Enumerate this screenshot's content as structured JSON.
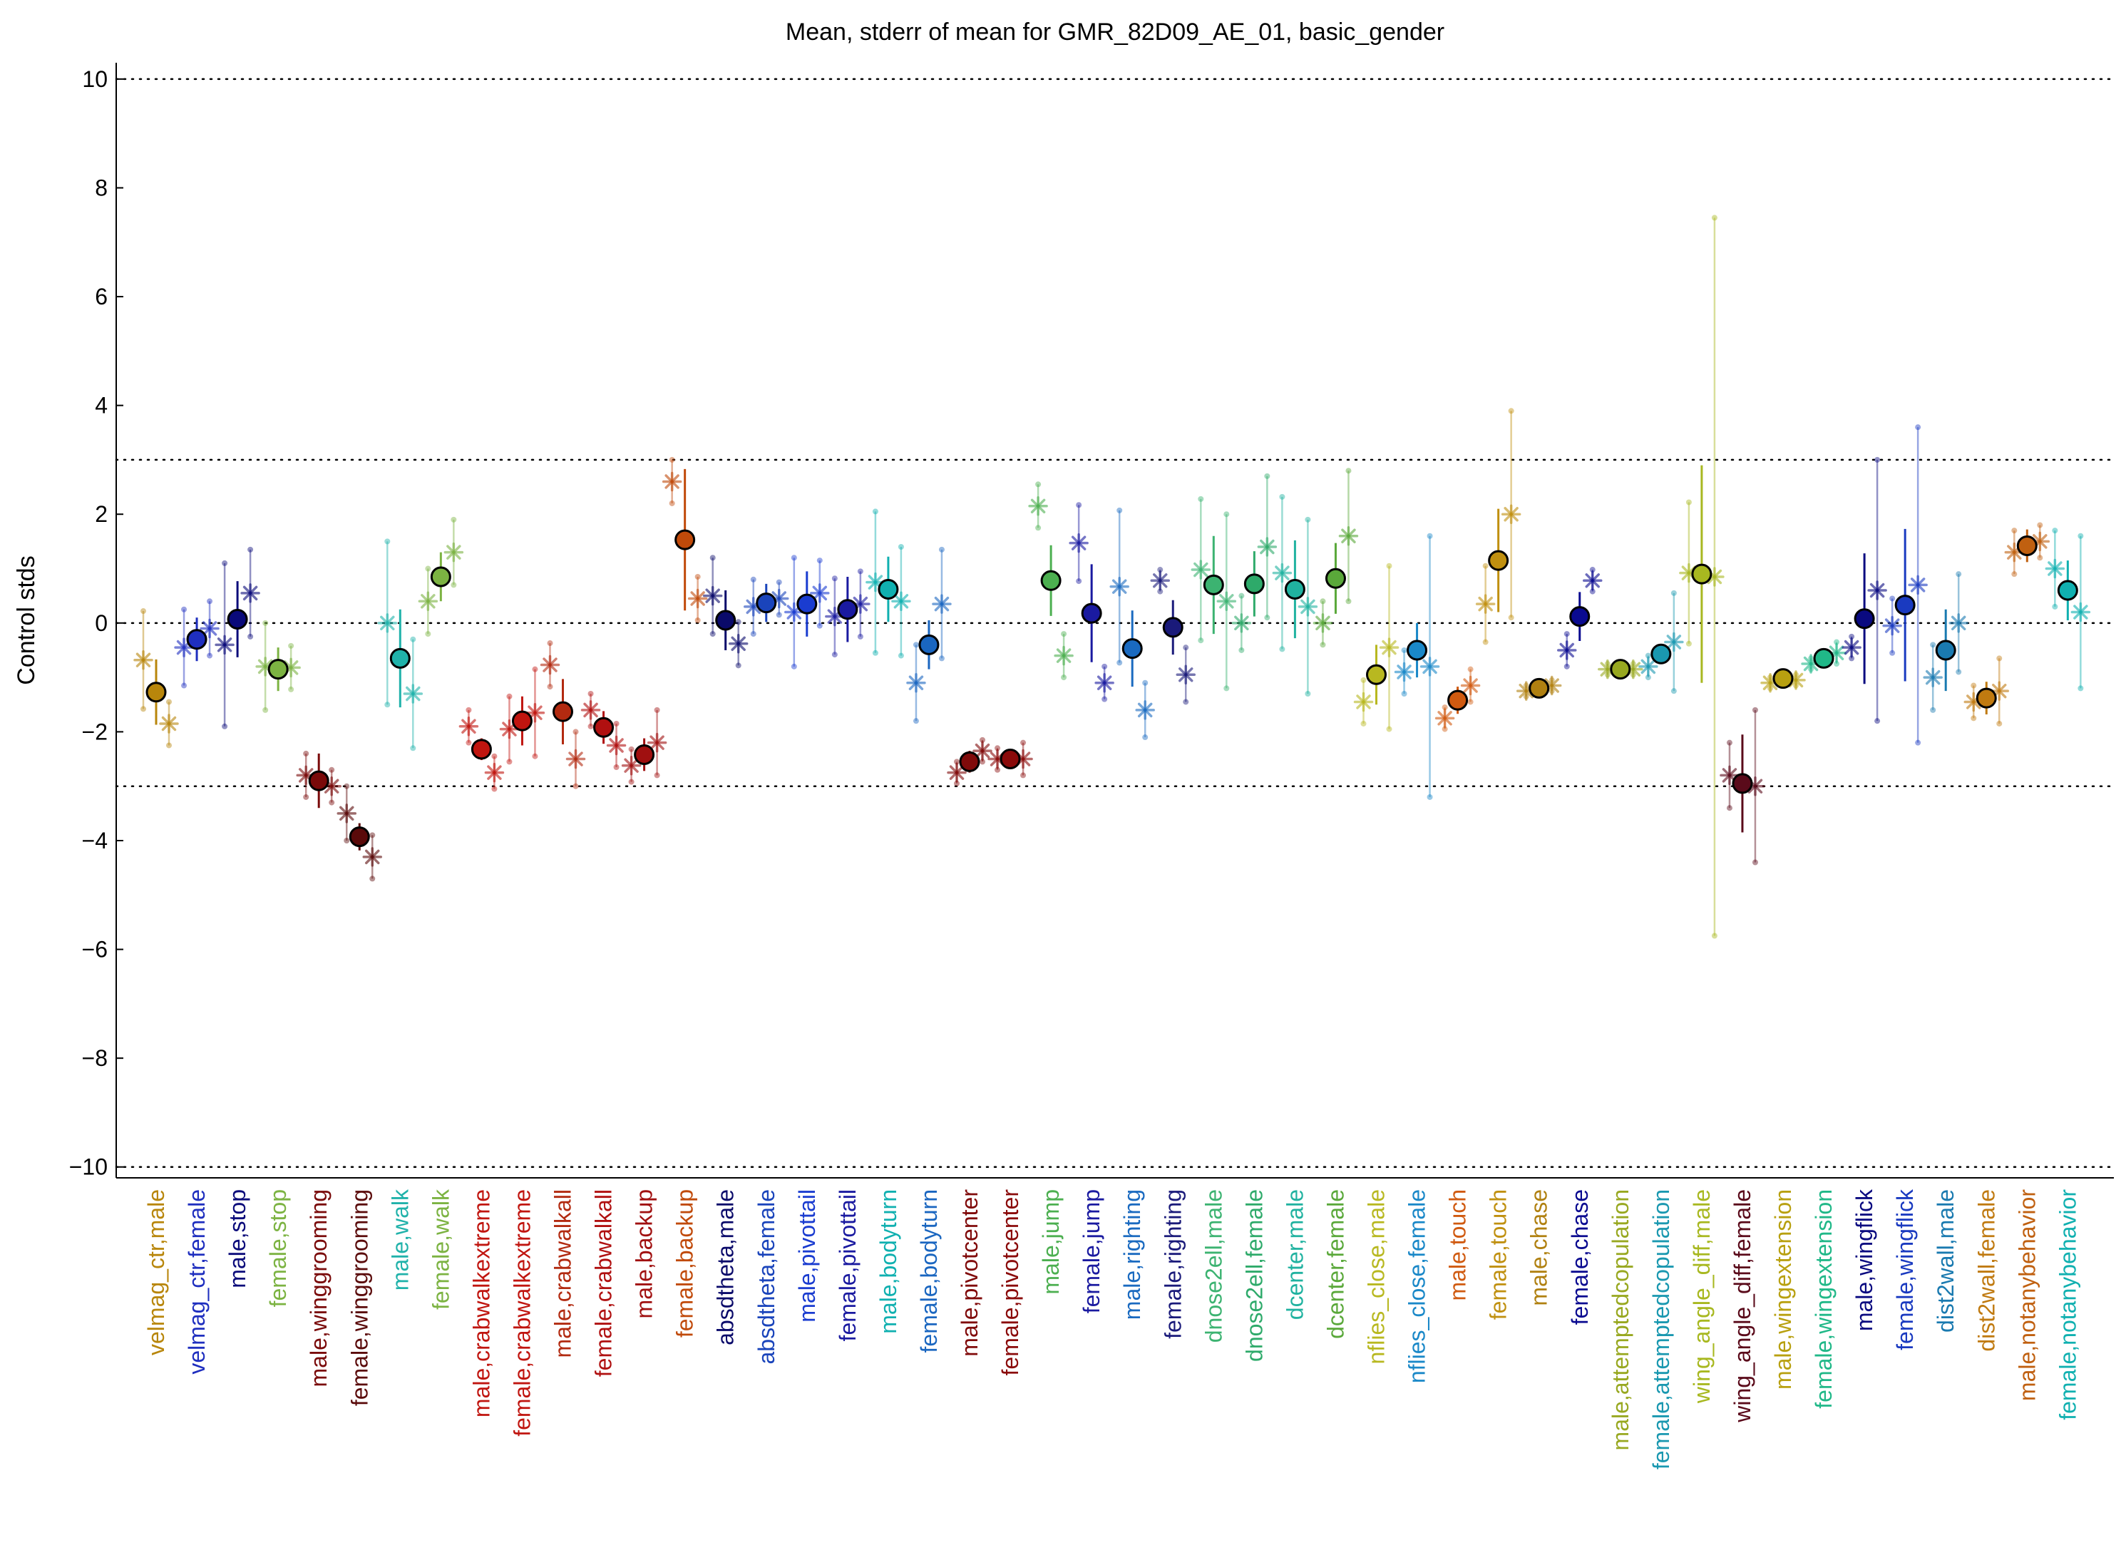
{
  "chart_data": {
    "type": "scatter",
    "title": "Mean, stderr of mean for GMR_82D09_AE_01, basic_gender",
    "xlabel": "",
    "ylabel": "Control stds",
    "ylim": [
      -10.2,
      10.3
    ],
    "yticks": [
      10,
      8,
      6,
      4,
      2,
      0,
      -2,
      -4,
      -6,
      -8,
      -10
    ],
    "ytick_labels": [
      "10",
      "8",
      "6",
      "4",
      "2",
      "0",
      "−2",
      "−4",
      "−6",
      "−8",
      "−10"
    ],
    "reference_lines": [
      10,
      3,
      0,
      -3,
      -10
    ],
    "grid": false,
    "legend": "none",
    "categories": [
      "velmag_ctr,male",
      "velmag_ctr,female",
      "male,stop",
      "female,stop",
      "male,winggrooming",
      "female,winggrooming",
      "male,walk",
      "female,walk",
      "male,crabwalkextreme",
      "female,crabwalkextreme",
      "male,crabwalkall",
      "female,crabwalkall",
      "male,backup",
      "female,backup",
      "absdtheta,male",
      "absdtheta,female",
      "male,pivottail",
      "female,pivottail",
      "male,bodyturn",
      "female,bodyturn",
      "male,pivotcenter",
      "female,pivotcenter",
      "male,jump",
      "female,jump",
      "male,righting",
      "female,righting",
      "dnose2ell,male",
      "dnose2ell,female",
      "dcenter,male",
      "dcenter,female",
      "nflies_close,male",
      "nflies_close,female",
      "male,touch",
      "female,touch",
      "male,chase",
      "female,chase",
      "male,attemptedcopulation",
      "female,attemptedcopulation",
      "wing_angle_diff,male",
      "wing_angle_diff,female",
      "male,wingextension",
      "female,wingextension",
      "male,wingflick",
      "female,wingflick",
      "dist2wall,male",
      "dist2wall,female",
      "male,notanybehavior",
      "female,notanybehavior"
    ],
    "colors": [
      "#b8860b",
      "#1f2fbf",
      "#0a0a7a",
      "#7cb342",
      "#7a0a0a",
      "#5a0a0a",
      "#20b2aa",
      "#7cb342",
      "#c0150f",
      "#c0150f",
      "#b22a10",
      "#b01010",
      "#a01010",
      "#c04a0a",
      "#0a0a6a",
      "#1a44bb",
      "#1a3cd0",
      "#1a1aa0",
      "#10b0b0",
      "#1a66c0",
      "#800a0a",
      "#8a0a0a",
      "#4caf50",
      "#1a1aa0",
      "#1a6ac0",
      "#1a1a7a",
      "#3cb371",
      "#2eaa6a",
      "#20b2a0",
      "#5aa83a",
      "#b8b820",
      "#1a88c8",
      "#d05a10",
      "#c09010",
      "#b08010",
      "#0a0a90",
      "#98a820",
      "#1a98b0",
      "#a8b820",
      "#5a0a1a",
      "#b8a010",
      "#20b888",
      "#0a0a80",
      "#1a3ac0",
      "#1a7ab0",
      "#c07a10",
      "#c06010",
      "#10b0b0"
    ],
    "series": [
      {
        "name": "",
        "values": [
          -1.27,
          -0.3,
          0.07,
          -0.85,
          -2.9,
          -3.93,
          -0.65,
          0.85,
          -2.32,
          -1.8,
          -1.63,
          -1.92,
          -2.42,
          1.53,
          0.05,
          0.37,
          0.35,
          0.25,
          0.62,
          -0.4,
          -2.55,
          -2.5,
          0.78,
          0.18,
          -0.47,
          -0.08,
          0.7,
          0.72,
          0.62,
          0.82,
          -0.95,
          -0.5,
          -1.42,
          1.15,
          -1.2,
          0.12,
          -0.85,
          -0.57,
          0.9,
          -2.95,
          -1.02,
          -0.65,
          0.08,
          0.33,
          -0.5,
          -1.38,
          1.42,
          0.6
        ],
        "stderr": [
          0.6,
          0.4,
          0.7,
          0.4,
          0.5,
          0.25,
          0.9,
          0.45,
          0.2,
          0.45,
          0.6,
          0.3,
          0.3,
          1.3,
          0.55,
          0.35,
          0.6,
          0.6,
          0.6,
          0.45,
          0.2,
          0.15,
          0.65,
          0.9,
          0.7,
          0.5,
          0.9,
          0.6,
          0.9,
          0.65,
          0.55,
          0.5,
          0.25,
          0.95,
          0.15,
          0.45,
          0.15,
          0.15,
          2.0,
          0.9,
          0.1,
          0.1,
          1.2,
          1.4,
          0.75,
          0.3,
          0.3,
          0.55
        ]
      },
      {
        "name": "",
        "values": [
          -0.68,
          -0.45,
          -0.4,
          -0.8,
          -2.8,
          -3.5,
          0.0,
          0.4,
          -1.9,
          -1.95,
          -0.77,
          -1.6,
          -2.62,
          2.6,
          0.5,
          0.3,
          0.2,
          0.12,
          0.75,
          -1.1,
          -2.75,
          -2.5,
          2.15,
          1.47,
          0.67,
          0.78,
          0.98,
          0.0,
          0.92,
          0.0,
          -1.45,
          -0.9,
          -1.75,
          0.35,
          -1.25,
          -0.5,
          -0.85,
          -0.8,
          0.92,
          -2.8,
          -1.1,
          -0.75,
          -0.45,
          -0.05,
          -1.0,
          -1.45,
          1.3,
          1.0
        ],
        "stderr": [
          0.9,
          0.7,
          1.5,
          0.8,
          0.4,
          0.5,
          1.5,
          0.6,
          0.3,
          0.6,
          0.4,
          0.3,
          0.3,
          0.4,
          0.7,
          0.5,
          1.0,
          0.7,
          1.3,
          0.7,
          0.2,
          0.2,
          0.4,
          0.7,
          1.4,
          0.2,
          1.3,
          0.5,
          1.4,
          0.4,
          0.4,
          0.4,
          0.2,
          0.7,
          0.1,
          0.3,
          0.1,
          0.2,
          1.3,
          0.6,
          0.1,
          0.1,
          0.2,
          0.5,
          0.6,
          0.3,
          0.4,
          0.7
        ]
      },
      {
        "name": "",
        "values": [
          -1.85,
          -0.1,
          0.55,
          -0.82,
          -3.0,
          -4.3,
          -1.3,
          1.3,
          -2.75,
          -1.65,
          -2.5,
          -2.25,
          -2.2,
          0.45,
          -0.38,
          0.45,
          0.55,
          0.35,
          0.4,
          0.35,
          -2.35,
          -2.5,
          -0.6,
          -1.1,
          -1.6,
          -0.95,
          0.4,
          1.4,
          0.3,
          1.6,
          -0.45,
          -0.8,
          -1.15,
          2.0,
          -1.15,
          0.78,
          -0.85,
          -0.35,
          0.85,
          -3.0,
          -1.05,
          -0.55,
          0.6,
          0.7,
          0.0,
          -1.25,
          1.5,
          0.2
        ],
        "stderr": [
          0.4,
          0.5,
          0.8,
          0.4,
          0.3,
          0.4,
          1.0,
          0.6,
          0.3,
          0.8,
          0.5,
          0.4,
          0.6,
          0.4,
          0.4,
          0.3,
          0.6,
          0.6,
          1.0,
          1.0,
          0.2,
          0.3,
          0.4,
          0.3,
          0.5,
          0.5,
          1.6,
          1.3,
          1.6,
          1.2,
          1.5,
          2.4,
          0.3,
          1.9,
          0.1,
          0.2,
          0.1,
          0.9,
          6.6,
          1.4,
          0.1,
          0.2,
          2.4,
          2.9,
          0.9,
          0.6,
          0.3,
          1.4
        ]
      }
    ]
  }
}
